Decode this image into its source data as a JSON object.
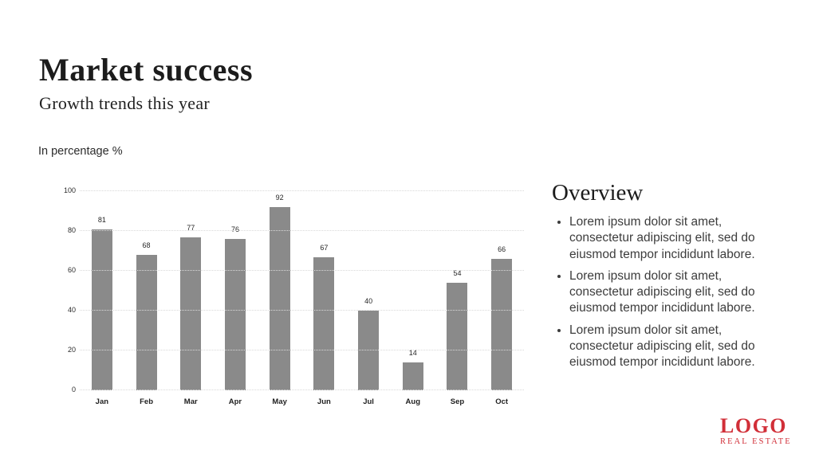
{
  "slide": {
    "title": "Market success",
    "subtitle": "Growth trends this year"
  },
  "chart_caption": "In percentage %",
  "chart_data": {
    "type": "bar",
    "title": "Growth trends this year",
    "units": "percent",
    "categories": [
      "Jan",
      "Feb",
      "Mar",
      "Apr",
      "May",
      "Jun",
      "Jul",
      "Aug",
      "Sep",
      "Oct"
    ],
    "values": [
      81,
      68,
      77,
      76,
      92,
      67,
      40,
      14,
      54,
      66
    ],
    "xlabel": "",
    "ylabel": "In percentage %",
    "ylim": [
      0,
      100
    ],
    "yticks": [
      0,
      20,
      40,
      60,
      80,
      100
    ],
    "grid": true,
    "gridline_style": "dotted",
    "data_labels": true,
    "legend": "none",
    "bar_color": "#8a8a8a"
  },
  "overview": {
    "title": "Overview",
    "bullets": [
      "Lorem ipsum dolor sit amet, consectetur adipiscing elit, sed do eiusmod tempor incididunt labore.",
      "Lorem ipsum dolor sit amet, consectetur adipiscing elit, sed do eiusmod tempor incididunt labore.",
      "Lorem ipsum dolor sit amet, consectetur adipiscing elit, sed do eiusmod tempor incididunt labore."
    ]
  },
  "logo": {
    "name": "LOGO",
    "tagline": "REAL ESTATE",
    "color": "#d12f38"
  }
}
